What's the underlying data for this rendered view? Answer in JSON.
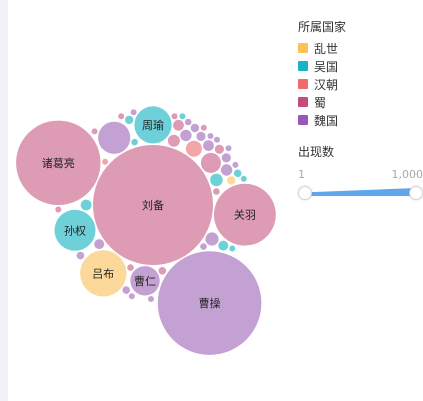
{
  "chart_data": {
    "type": "bubble",
    "legend": {
      "title": "所属国家",
      "items": [
        {
          "name": "乱世",
          "color": "#f9c357"
        },
        {
          "name": "吴国",
          "color": "#1ab3c3"
        },
        {
          "name": "汉朝",
          "color": "#ee6b6e"
        },
        {
          "name": "蜀",
          "color": "#c64b7c"
        },
        {
          "name": "魏国",
          "color": "#9759b5"
        }
      ]
    },
    "size_legend": {
      "title": "出现数",
      "min": "1",
      "max": "1,000"
    },
    "bubble_fills": {
      "乱世": "#fcd99a",
      "吴国": "#6ed0d9",
      "汉朝": "#f3a6a7",
      "蜀": "#dd9bb4",
      "魏国": "#c4a1d3"
    },
    "labeled_bubbles": [
      {
        "name": "刘备",
        "country": "蜀",
        "count": 1000
      },
      {
        "name": "曹操",
        "country": "魏国",
        "count": 745
      },
      {
        "name": "诸葛亮",
        "country": "蜀",
        "count": 495
      },
      {
        "name": "关羽",
        "country": "蜀",
        "count": 265
      },
      {
        "name": "吕布",
        "country": "乱世",
        "count": 148
      },
      {
        "name": "孙权",
        "country": "吴国",
        "count": 117
      },
      {
        "name": "周瑜",
        "country": "吴国",
        "count": 96
      },
      {
        "name": "曹仁",
        "country": "魏国",
        "count": 60
      }
    ],
    "unlabeled_bubbles": [
      {
        "country": "魏国",
        "count": 72
      },
      {
        "country": "蜀",
        "count": 28
      },
      {
        "country": "汉朝",
        "count": 18
      },
      {
        "country": "魏国",
        "count": 12
      },
      {
        "country": "吴国",
        "count": 11
      },
      {
        "country": "蜀",
        "count": 10
      },
      {
        "country": "魏国",
        "count": 9
      },
      {
        "country": "魏国",
        "count": 9
      },
      {
        "country": "吴国",
        "count": 8
      },
      {
        "country": "魏国",
        "count": 8
      },
      {
        "country": "蜀",
        "count": 8
      },
      {
        "country": "魏国",
        "count": 7
      },
      {
        "country": "吴国",
        "count": 7
      },
      {
        "country": "魏国",
        "count": 6
      },
      {
        "country": "蜀",
        "count": 6
      },
      {
        "country": "魏国",
        "count": 6
      },
      {
        "country": "乱世",
        "count": 5
      },
      {
        "country": "魏国",
        "count": 5
      },
      {
        "country": "吴国",
        "count": 5
      },
      {
        "country": "蜀",
        "count": 4
      },
      {
        "country": "魏国",
        "count": 4
      },
      {
        "country": "魏国",
        "count": 4
      },
      {
        "country": "吴国",
        "count": 4
      },
      {
        "country": "蜀",
        "count": 3
      },
      {
        "country": "魏国",
        "count": 3
      },
      {
        "country": "吴国",
        "count": 3
      },
      {
        "country": "蜀",
        "count": 3
      },
      {
        "country": "魏国",
        "count": 3
      },
      {
        "country": "汉朝",
        "count": 2
      },
      {
        "country": "魏国",
        "count": 2
      },
      {
        "country": "吴国",
        "count": 2
      },
      {
        "country": "蜀",
        "count": 2
      },
      {
        "country": "魏国",
        "count": 2
      },
      {
        "country": "魏国",
        "count": 2
      },
      {
        "country": "蜀",
        "count": 2
      },
      {
        "country": "吴国",
        "count": 1
      },
      {
        "country": "魏国",
        "count": 1
      },
      {
        "country": "蜀",
        "count": 1
      },
      {
        "country": "魏国",
        "count": 1
      },
      {
        "country": "蜀",
        "count": 1
      },
      {
        "country": "魏国",
        "count": 1
      },
      {
        "country": "吴国",
        "count": 1
      },
      {
        "country": "魏国",
        "count": 1
      },
      {
        "country": "蜀",
        "count": 1
      }
    ]
  }
}
